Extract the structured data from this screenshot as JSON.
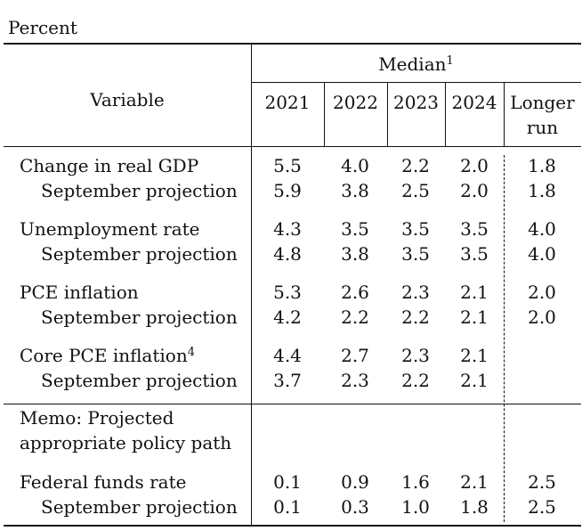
{
  "unit_label": "Percent",
  "header": {
    "median_label": "Median",
    "median_note": "1",
    "variable_label": "Variable",
    "years": [
      "2021",
      "2022",
      "2023",
      "2024"
    ],
    "longer_run_line1": "Longer",
    "longer_run_line2": "run"
  },
  "rows": [
    {
      "label": "Change in real GDP",
      "note": "",
      "values": [
        "5.5",
        "4.0",
        "2.2",
        "2.0",
        "1.8"
      ]
    },
    {
      "label": "September projection",
      "note": "",
      "values": [
        "5.9",
        "3.8",
        "2.5",
        "2.0",
        "1.8"
      ]
    },
    {
      "label": "Unemployment rate",
      "note": "",
      "values": [
        "4.3",
        "3.5",
        "3.5",
        "3.5",
        "4.0"
      ]
    },
    {
      "label": "September projection",
      "note": "",
      "values": [
        "4.8",
        "3.8",
        "3.5",
        "3.5",
        "4.0"
      ]
    },
    {
      "label": "PCE inflation",
      "note": "",
      "values": [
        "5.3",
        "2.6",
        "2.3",
        "2.1",
        "2.0"
      ]
    },
    {
      "label": "September projection",
      "note": "",
      "values": [
        "4.2",
        "2.2",
        "2.2",
        "2.1",
        "2.0"
      ]
    },
    {
      "label": "Core PCE inflation",
      "note": "4",
      "values": [
        "4.4",
        "2.7",
        "2.3",
        "2.1",
        ""
      ]
    },
    {
      "label": "September projection",
      "note": "",
      "values": [
        "3.7",
        "2.3",
        "2.2",
        "2.1",
        ""
      ]
    }
  ],
  "memo": {
    "line1": "Memo: Projected",
    "line2": "appropriate policy path"
  },
  "memo_rows": [
    {
      "label": "Federal funds rate",
      "values": [
        "0.1",
        "0.9",
        "1.6",
        "2.1",
        "2.5"
      ]
    },
    {
      "label": "September projection",
      "values": [
        "0.1",
        "0.3",
        "1.0",
        "1.8",
        "2.5"
      ]
    }
  ]
}
